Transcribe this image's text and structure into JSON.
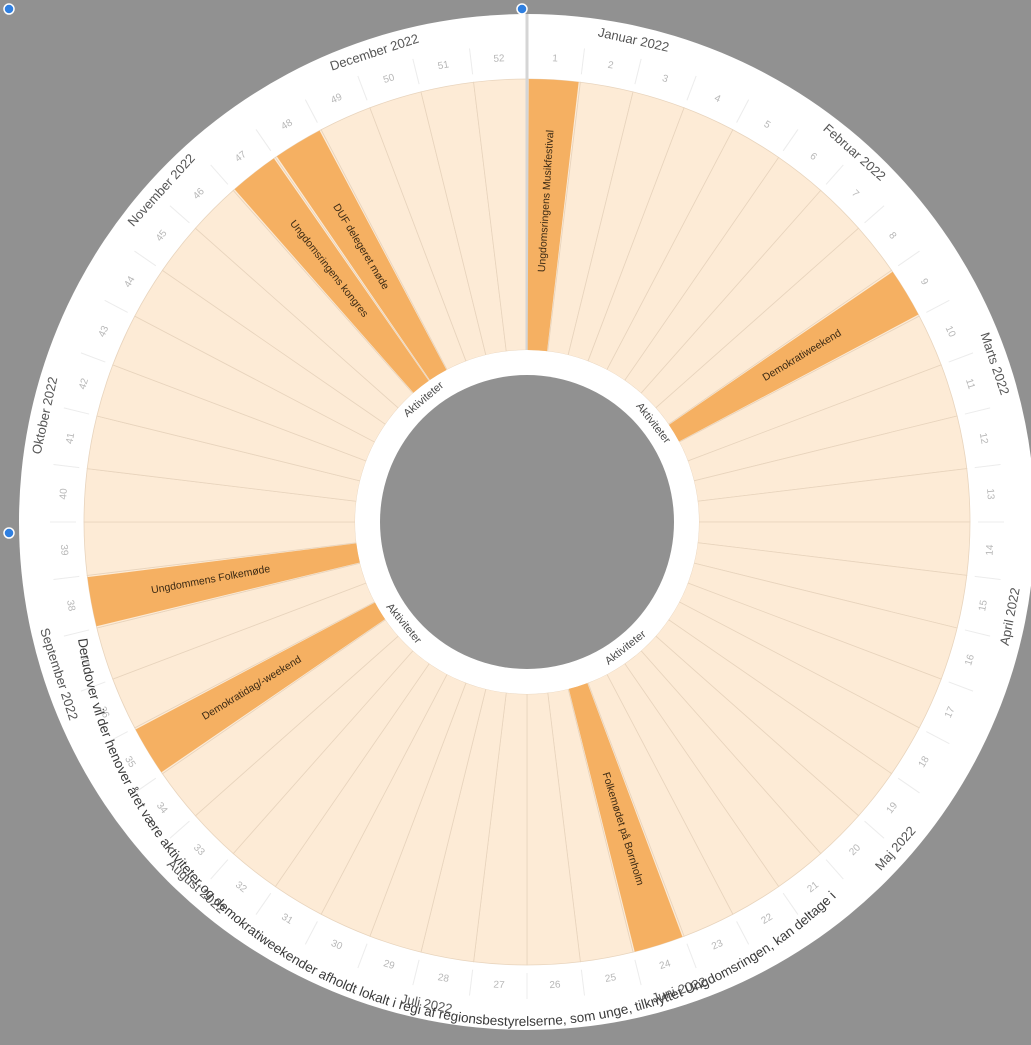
{
  "colors": {
    "background": "#919191",
    "outer_ring": "#ffffff",
    "sector_fill": "#fdebd6",
    "sector_line": "#e8d4bd",
    "event_fill": "#f5b062",
    "inner_ring": "#ffffff",
    "center_hole": "#919191",
    "selection_handle": "#2f7fe0"
  },
  "wheel": {
    "weeks": [
      "1",
      "2",
      "3",
      "4",
      "5",
      "6",
      "7",
      "8",
      "9",
      "10",
      "11",
      "12",
      "13",
      "14",
      "15",
      "16",
      "17",
      "18",
      "19",
      "20",
      "21",
      "22",
      "23",
      "24",
      "25",
      "26",
      "27",
      "28",
      "29",
      "30",
      "31",
      "32",
      "33",
      "34",
      "35",
      "36",
      "37",
      "38",
      "39",
      "40",
      "41",
      "42",
      "43",
      "44",
      "45",
      "46",
      "47",
      "48",
      "49",
      "50",
      "51",
      "52"
    ],
    "months": [
      {
        "label": "Januar 2022",
        "week": 2.8
      },
      {
        "label": "Februar 2022",
        "week": 7.0
      },
      {
        "label": "Marts 2022",
        "week": 11.3
      },
      {
        "label": "April 2022",
        "week": 15.6
      },
      {
        "label": "Maj 2022",
        "week": 20.0
      },
      {
        "label": "Juni 2022",
        "week": 24.4
      },
      {
        "label": "Juli 2022",
        "week": 28.7
      },
      {
        "label": "August 2022",
        "week": 33.1
      },
      {
        "label": "September 2022",
        "week": 37.4
      },
      {
        "label": "Oktober 2022",
        "week": 41.8
      },
      {
        "label": "November 2022",
        "week": 46.1
      },
      {
        "label": "December 2022",
        "week": 50.4
      }
    ],
    "ring_label": "Aktiviteter",
    "ring_label_weeks": [
      8.5,
      21.5,
      34.3,
      47.2
    ],
    "events": [
      {
        "label": "Ungdomsringens Musikfestival",
        "week_start": 1,
        "week_end": 1
      },
      {
        "label": "Demokratiweekend",
        "week_start": 9,
        "week_end": 9
      },
      {
        "label": "Folkemødet på Bornholm",
        "week_start": 24,
        "week_end": 24
      },
      {
        "label": "Demokratidag/-weekend",
        "week_start": 35,
        "week_end": 35
      },
      {
        "label": "Ungdommens Folkemøde",
        "week_start": 38,
        "week_end": 38
      },
      {
        "label": "Ungdomsringens kongres",
        "week_start": 47,
        "week_end": 47
      },
      {
        "label": "DUF delegeret møde",
        "week_start": 48,
        "week_end": 48
      }
    ],
    "footer_text": "Derudover vil der henover året være aktiviteter og demokratiweekender afholdt lokalt i regi af regionsbestyrelserne, som unge, tilknyttet Ungdomsringen, kan deltage i"
  }
}
